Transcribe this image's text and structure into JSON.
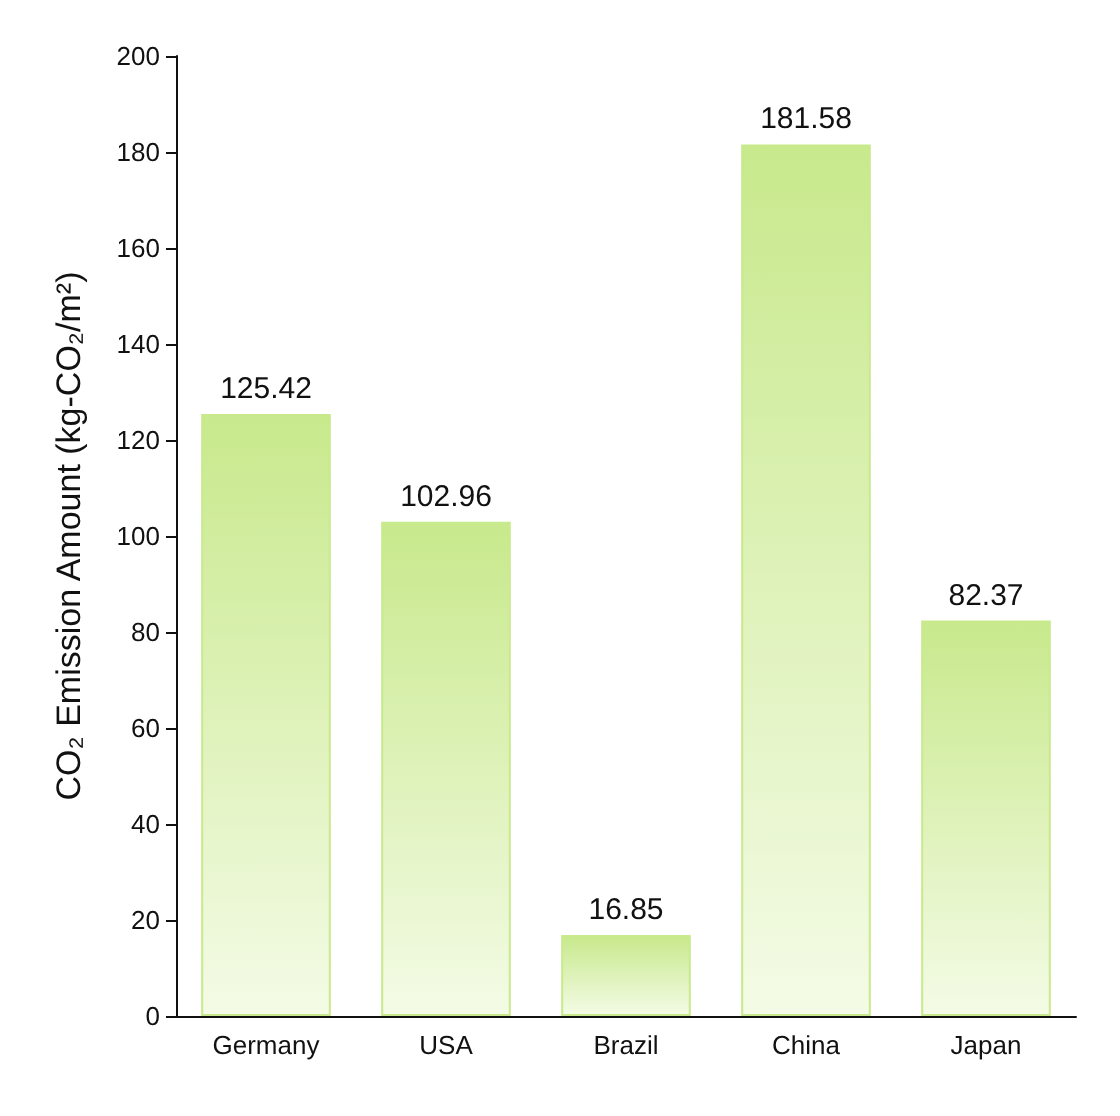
{
  "chart_data": {
    "type": "bar",
    "ylabel": "CO₂ Emission Amount (kg-CO₂/m²)",
    "categories": [
      "Germany",
      "USA",
      "Brazil",
      "China",
      "Japan"
    ],
    "values": [
      125.42,
      102.96,
      16.85,
      181.58,
      82.37
    ],
    "color": "#c8e98c",
    "ylim": [
      0,
      200
    ],
    "yticks": [
      0,
      20,
      40,
      60,
      80,
      100,
      120,
      140,
      160,
      180,
      200
    ],
    "grid": false,
    "data_labels": true
  }
}
